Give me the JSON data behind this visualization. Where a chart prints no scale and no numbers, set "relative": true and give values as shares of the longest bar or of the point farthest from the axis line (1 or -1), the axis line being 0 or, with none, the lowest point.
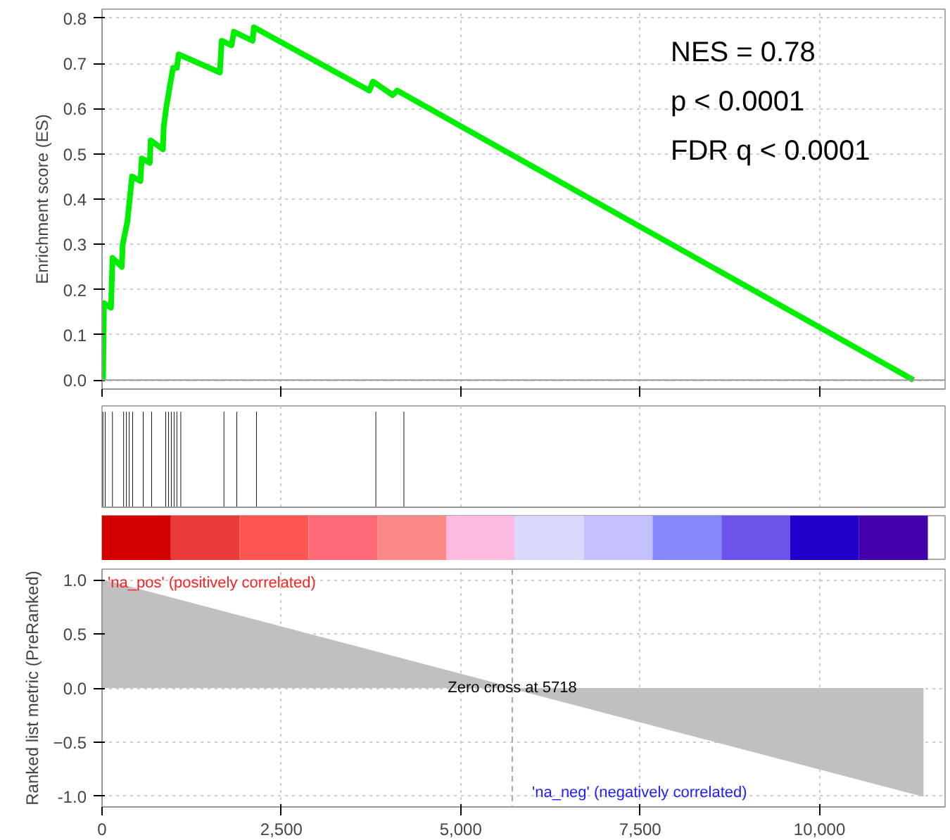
{
  "chart_data": [
    {
      "type": "line",
      "ylabel": "Enrichment score (ES)",
      "xlim": [
        0,
        11750
      ],
      "ylim": [
        -0.02,
        0.82
      ],
      "xticks": [
        0,
        2500,
        5000,
        7500,
        10000
      ],
      "yticks": [
        {
          "value": 0,
          "label": "0.0"
        },
        0.1,
        0.2,
        0.3,
        0.4,
        0.5,
        0.6,
        0.7,
        0.8
      ],
      "tick_labels": "y",
      "grid": true,
      "line_style": "solid",
      "marker": "none",
      "series": [
        {
          "color": "#00ee00",
          "x": [
            14,
            27,
            125,
            146,
            275,
            288,
            353,
            418,
            535,
            554,
            665,
            678,
            848,
            860,
            893,
            945,
            990,
            1043,
            1068,
            1642,
            1668,
            1805,
            1838,
            2098,
            2117,
            3725,
            3777,
            4051,
            4115,
            11310
          ],
          "values": [
            0,
            0.17,
            0.16,
            0.27,
            0.25,
            0.3,
            0.35,
            0.45,
            0.44,
            0.49,
            0.48,
            0.53,
            0.51,
            0.56,
            0.6,
            0.65,
            0.69,
            0.69,
            0.72,
            0.68,
            0.75,
            0.74,
            0.77,
            0.75,
            0.78,
            0.64,
            0.66,
            0.63,
            0.64,
            0
          ]
        }
      ],
      "ref_lines": [
        {
          "axis": "y",
          "value": 0,
          "color": "#999999",
          "line_style": "solid"
        }
      ],
      "annotations": [
        "NES = 0.78",
        "p < 0.0001",
        "FDR q < 0.0001"
      ]
    },
    {
      "type": "bar",
      "relative": true,
      "xlim": [
        0,
        11750
      ],
      "xticks": [
        0,
        2500,
        5000,
        7500,
        10000
      ],
      "tick_labels": false,
      "grid": "x",
      "x": [
        12,
        43,
        145,
        301,
        340,
        379,
        426,
        574,
        691,
        887,
        926,
        965,
        1004,
        1043,
        1098,
        1699,
        1879,
        2152,
        3816,
        4207
      ],
      "values": [
        1,
        1,
        1,
        1,
        1,
        1,
        1,
        1,
        1,
        1,
        1,
        1,
        1,
        1,
        1,
        1,
        1,
        1,
        1,
        1
      ],
      "color": "#000000"
    },
    {
      "type": "bar",
      "relative": true,
      "tick_labels": false,
      "categories": [
        null,
        null,
        null,
        null,
        null,
        null,
        null,
        null,
        null,
        null,
        null,
        null
      ],
      "values": [
        1,
        1,
        1,
        1,
        1,
        1,
        1,
        1,
        1,
        1,
        1,
        1
      ],
      "colors": [
        "#d40000",
        "#e83a3a",
        "#fe5555",
        "#fd6b78",
        "#fd8888",
        "#fdb9e0",
        "#d8d8fd",
        "#c4c0fd",
        "#8888fd",
        "#6a55e8",
        "#2200cc",
        "#4400aa"
      ]
    },
    {
      "type": "area",
      "ylabel": "Ranked list metric (PreRanked)",
      "xlim": [
        0,
        11750
      ],
      "ylim": [
        -1.1,
        1.1
      ],
      "xticks": [
        0,
        {
          "value": 2500,
          "label": "2,500"
        },
        {
          "value": 5000,
          "label": "5,000"
        },
        {
          "value": 7500,
          "label": "7,500"
        },
        {
          "value": 10000,
          "label": "10,000"
        }
      ],
      "yticks": [
        {
          "value": -1,
          "label": "-1.0"
        },
        -0.5,
        {
          "value": 0,
          "label": "0.0"
        },
        0.5,
        {
          "value": 1,
          "label": "1.0"
        }
      ],
      "grid": true,
      "series": [
        {
          "color": "#c0c0c0",
          "x": [
            0,
            5718,
            11450
          ],
          "values": [
            1,
            0,
            -1
          ]
        }
      ],
      "ref_lines": [
        {
          "axis": "x",
          "value": 5718,
          "color": "#aaaaaa",
          "line_style": "dashed"
        }
      ],
      "annotations": [
        "'na_pos' (positively correlated)",
        {
          "text": "Zero cross at 5718",
          "x": 5718,
          "y": 0
        },
        "'na_neg' (negatively correlated)"
      ]
    }
  ]
}
